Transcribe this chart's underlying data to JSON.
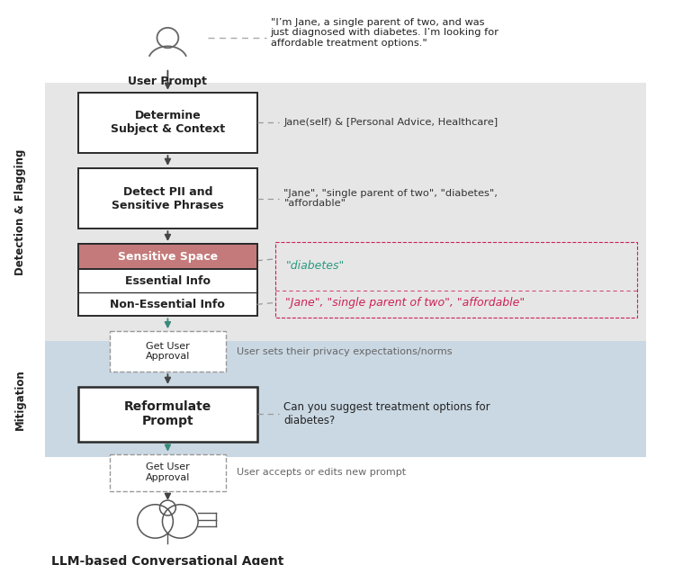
{
  "bg_color": "#ffffff",
  "detection_bg": "#e6e6e6",
  "mitigation_bg": "#cad8e3",
  "figure_size": [
    7.49,
    6.28
  ],
  "dpi": 100,
  "user_prompt_text": "User Prompt",
  "user_quote": "\"I’m Jane, a single parent of two, and was\njust diagnosed with diabetes. I’m looking for\naffordable treatment options.\"",
  "box1_text": "Determine\nSubject & Context",
  "box1_note": "Jane(self) & [Personal Advice, Healthcare]",
  "box2_text": "Detect PII and\nSensitive Phrases",
  "box2_note": "\"Jane\", \"single parent of two\", \"diabetes\",\n\"affordable\"",
  "sensitive_space_text": "Sensitive Space",
  "essential_text": "Essential Info",
  "nonessential_text": "Non-Essential Info",
  "essential_note": "\"diabetes\"",
  "nonessential_note": "\"Jane\", \"single parent of two\", \"affordable\"",
  "approval1_text": "Get User\nApproval",
  "approval1_note": "User sets their privacy expectations/norms",
  "reformulate_text": "Reformulate\nPrompt",
  "reformulate_note": "Can you suggest treatment options for\ndiabetes?",
  "approval2_text": "Get User\nApproval",
  "approval2_note": "User accepts or edits new prompt",
  "llm_text": "LLM-based Conversational Agent",
  "detection_label": "Detection & Flagging",
  "mitigation_label": "Mitigation",
  "colors": {
    "box_border": "#2a2a2a",
    "box_fill": "#ffffff",
    "sensitive_fill": "#c47a7a",
    "arrow_solid": "#444444",
    "arrow_teal": "#3a8a7a",
    "essential_color": "#2a9a80",
    "nonessential_color": "#cc2255",
    "note_color": "#666666",
    "label_color": "#222222",
    "dashed_box_border": "#999999",
    "dashed_note_line": "#999999",
    "ann_box_color": "#cc2255"
  }
}
